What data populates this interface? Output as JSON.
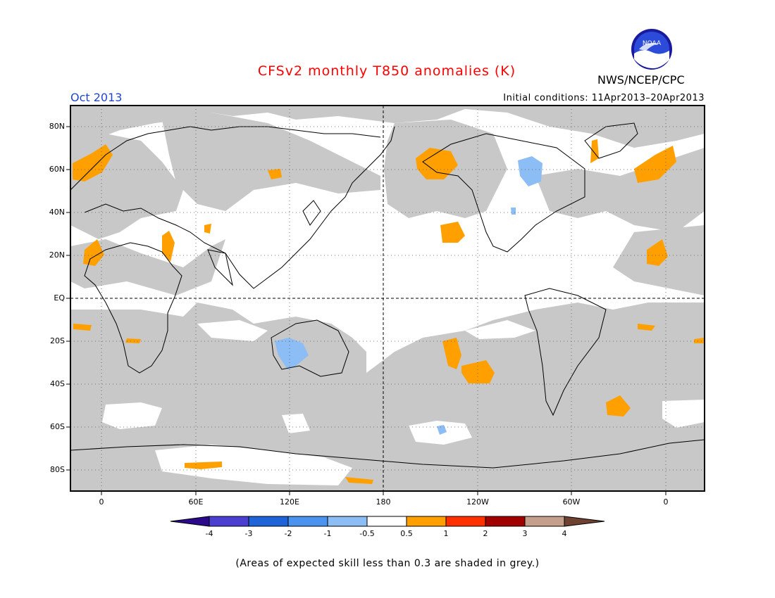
{
  "title": "CFSv2 monthly T850 anomalies (K)",
  "agency": "NWS/NCEP/CPC",
  "logo_text": "NOAA",
  "valid_month": "Oct 2013",
  "initial_conditions": "Initial conditions: 11Apr2013–20Apr2013",
  "map": {
    "projection": "cylindrical equidistant, centered on 180",
    "lat_labels": [
      "80N",
      "60N",
      "40N",
      "20N",
      "EQ",
      "20S",
      "40S",
      "60S",
      "80S"
    ],
    "lon_labels": [
      "0",
      "60E",
      "120E",
      "180",
      "120W",
      "60W",
      "0"
    ],
    "grey_meaning": "skill < 0.3",
    "colors": {
      "grey": "#c8c8c8",
      "white": "#ffffff",
      "coast": "#000000"
    }
  },
  "colorbar": {
    "labels": [
      "-4",
      "-3",
      "-2",
      "-1",
      "-0.5",
      "0.5",
      "1",
      "2",
      "3",
      "4"
    ],
    "colors": [
      "#2a0a8a",
      "#4a3fd0",
      "#1f63d8",
      "#4a94f0",
      "#8cbdf5",
      "#ffffff",
      "#ffa000",
      "#ff3000",
      "#a00000",
      "#c4a08c",
      "#6e4130"
    ]
  },
  "note": "(Areas of expected skill less than 0.3 are shaded in grey.)"
}
